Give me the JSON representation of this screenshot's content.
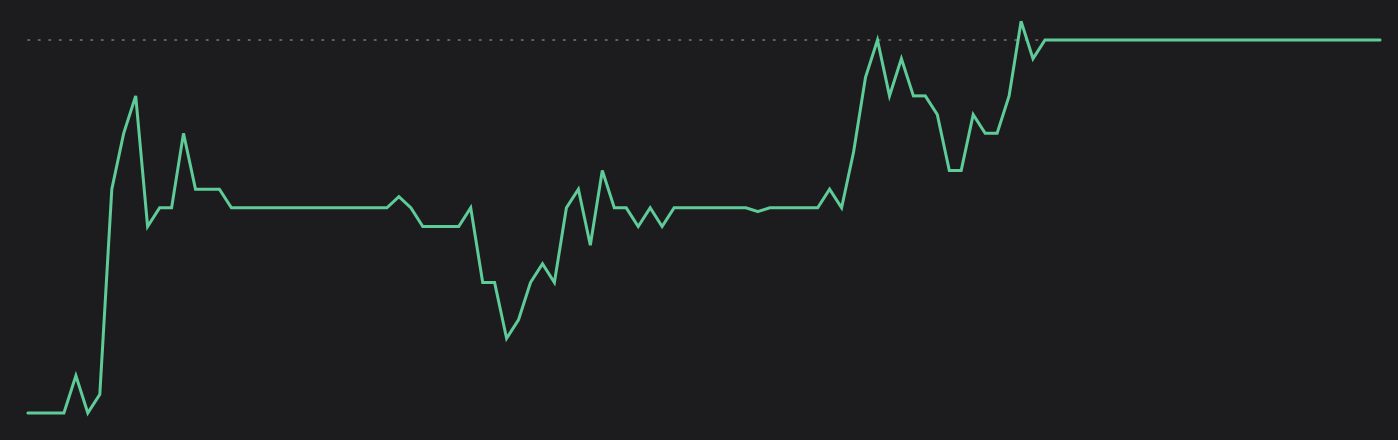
{
  "colors": {
    "background": "#1c1c1e",
    "line": "#5fcb98",
    "reference_line": "#7a7a7a"
  },
  "chart_data": {
    "type": "line",
    "title": "",
    "xlabel": "",
    "ylabel": "",
    "grid": false,
    "legend": "none",
    "ylim": [
      0,
      100
    ],
    "reference_line": 100,
    "series": [
      {
        "values": [
          0,
          0,
          0,
          0,
          10,
          0,
          5,
          60,
          75,
          85,
          50,
          55,
          55,
          75,
          60,
          60,
          60,
          55,
          55,
          55,
          55,
          55,
          55,
          55,
          55,
          55,
          55,
          55,
          55,
          55,
          55,
          58,
          55,
          50,
          50,
          50,
          50,
          55,
          35,
          35,
          20,
          25,
          35,
          40,
          35,
          55,
          60,
          45,
          65,
          55,
          55,
          50,
          55,
          50,
          55,
          55,
          55,
          55,
          55,
          55,
          55,
          54,
          55,
          55,
          55,
          55,
          55,
          60,
          55,
          70,
          90,
          100,
          85,
          95,
          85,
          85,
          80,
          65,
          65,
          80,
          75,
          75,
          85,
          105,
          95,
          100,
          100,
          100,
          100,
          100,
          100,
          100,
          100,
          100,
          100,
          100,
          100,
          100,
          100,
          100,
          100,
          100,
          100,
          100,
          100,
          100,
          100,
          100,
          100,
          100,
          100,
          100,
          100,
          100
        ]
      }
    ]
  }
}
